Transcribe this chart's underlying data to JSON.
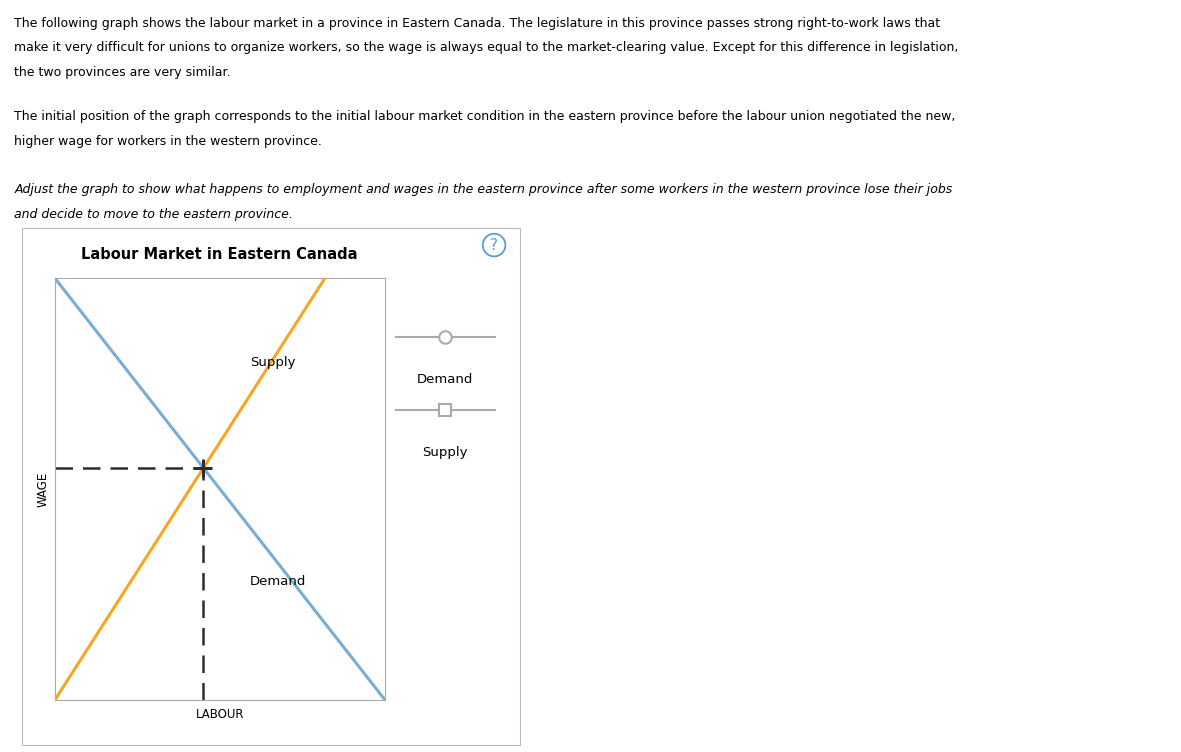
{
  "title": "Labour Market in Eastern Canada",
  "xlabel": "LABOUR",
  "ylabel": "WAGE",
  "background_color": "#ffffff",
  "text_color": "#000000",
  "demand_color": "#7aadd4",
  "supply_color": "#f5a623",
  "legend_line_color": "#aaaaaa",
  "dashed_color": "#2d2d2d",
  "demand_label": "Demand",
  "supply_label": "Supply",
  "question_mark_color": "#5b9bd5",
  "title_fontsize": 10.5,
  "axis_label_fontsize": 8.5,
  "legend_fontsize": 9.5,
  "para1_line1": "The following graph shows the labour market in a province in Eastern Canada. The legislature in this province passes strong right-to-work laws that",
  "para1_line2": "make it very difficult for unions to organize workers, so the wage is always equal to the market-clearing value. Except for this difference in legislation,",
  "para1_line3": "the two provinces are very similar.",
  "para2_line1": "The initial position of the graph corresponds to the initial labour market condition in the eastern province before the labour union negotiated the new,",
  "para2_line2": "higher wage for workers in the western province.",
  "para3_line1": "Adjust the graph to show what happens to employment and wages in the eastern province after some workers in the western province lose their jobs",
  "para3_line2": "and decide to move to the eastern province."
}
